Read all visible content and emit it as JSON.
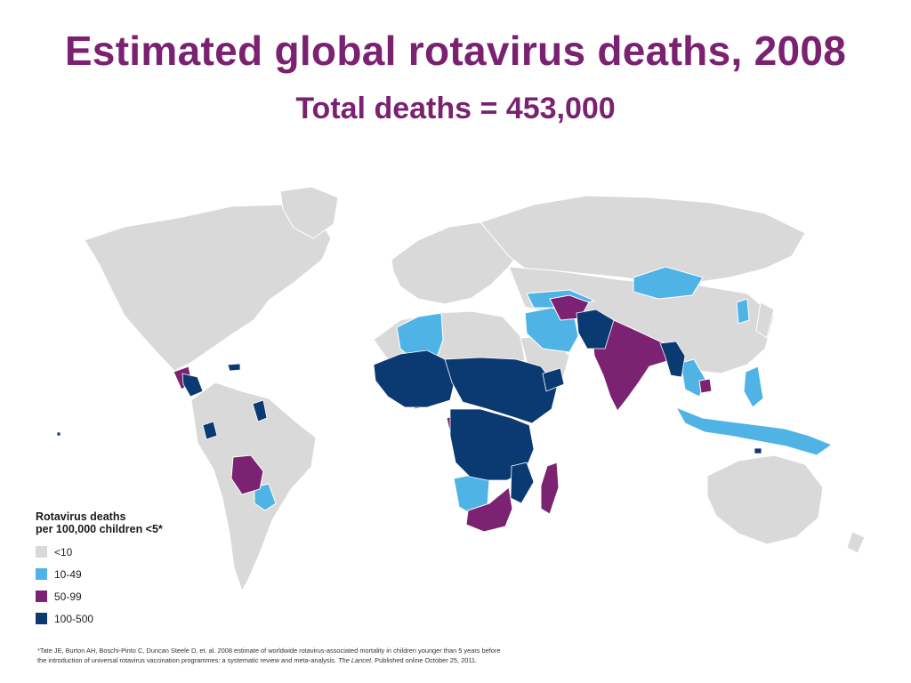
{
  "title": "Estimated global rotavirus deaths, 2008",
  "subtitle": "Total deaths = 453,000",
  "colors": {
    "title": "#7b2171",
    "land_lt10": "#d9d9d9",
    "c10_49": "#4fb3e6",
    "c50_99": "#7b2372",
    "c100_500": "#0b3a73"
  },
  "legend": {
    "title_line1": "Rotavirus deaths",
    "title_line2": "per 100,000 children <5*",
    "items": [
      {
        "label": "<10",
        "color": "#d9d9d9"
      },
      {
        "label": "10-49",
        "color": "#4fb3e6"
      },
      {
        "label": "50-99",
        "color": "#7b2372"
      },
      {
        "label": "100-500",
        "color": "#0b3a73"
      }
    ]
  },
  "footnote": {
    "line1": "*Tate JE, Burton AH, Boschi-Pinto C, Duncan Steele D, et. al. 2008 estimate of worldwide rotavirus-associated mortality in children younger than 5 years before",
    "line2_a": "the introduction of universal rotavirus vaccination programmes: a systematic review and meta-analysis. ",
    "line2_journal": "The Lancet",
    "line2_b": ". Published online October 25, 2011."
  }
}
